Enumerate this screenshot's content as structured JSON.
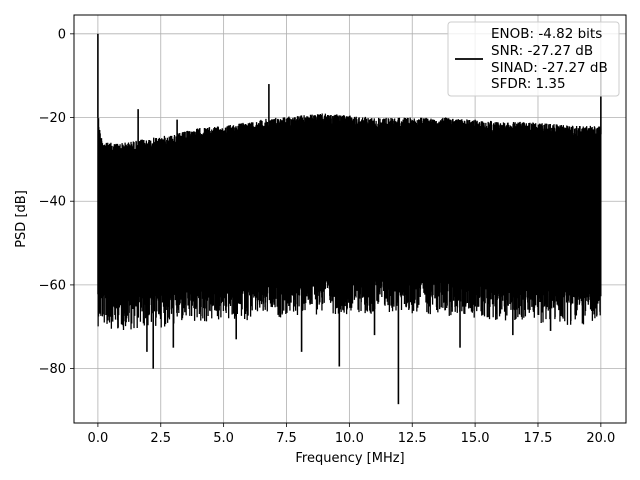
{
  "chart_data": {
    "type": "line",
    "title": "",
    "xlabel": "Frequency [MHz]",
    "ylabel": "PSD [dB]",
    "xlim": [
      -0.95,
      21.0
    ],
    "ylim": [
      -93.0,
      4.5
    ],
    "grid": true,
    "legend_position": "top-right",
    "x_ticks": [
      {
        "value": 0.0,
        "label": "0.0"
      },
      {
        "value": 2.5,
        "label": "2.5"
      },
      {
        "value": 5.0,
        "label": "5.0"
      },
      {
        "value": 7.5,
        "label": "7.5"
      },
      {
        "value": 10.0,
        "label": "10.0"
      },
      {
        "value": 12.5,
        "label": "12.5"
      },
      {
        "value": 15.0,
        "label": "15.0"
      },
      {
        "value": 17.5,
        "label": "17.5"
      },
      {
        "value": 20.0,
        "label": "20.0"
      }
    ],
    "y_ticks": [
      {
        "value": 0,
        "label": "0"
      },
      {
        "value": -20,
        "label": "−20"
      },
      {
        "value": -40,
        "label": "−40"
      },
      {
        "value": -60,
        "label": "−60"
      },
      {
        "value": -80,
        "label": "−80"
      }
    ],
    "series": [
      {
        "color": "#000000",
        "x_range": [
          0.0,
          20.0
        ],
        "upper_envelope": [
          [
            0.0,
            -18
          ],
          [
            0.1,
            -24
          ],
          [
            0.3,
            -26
          ],
          [
            1.0,
            -26
          ],
          [
            2.0,
            -25
          ],
          [
            3.0,
            -24
          ],
          [
            4.0,
            -22.5
          ],
          [
            5.0,
            -22
          ],
          [
            6.0,
            -21
          ],
          [
            7.0,
            -20
          ],
          [
            8.0,
            -19.5
          ],
          [
            9.0,
            -19
          ],
          [
            10.0,
            -19.5
          ],
          [
            11.0,
            -20
          ],
          [
            12.0,
            -20
          ],
          [
            13.0,
            -20
          ],
          [
            14.0,
            -20
          ],
          [
            15.0,
            -20.5
          ],
          [
            16.0,
            -21
          ],
          [
            17.0,
            -21
          ],
          [
            18.0,
            -21.5
          ],
          [
            19.0,
            -22
          ],
          [
            20.0,
            -22
          ]
        ],
        "dense_floor": [
          [
            0.0,
            -62
          ],
          [
            1.0,
            -63
          ],
          [
            3.0,
            -62
          ],
          [
            5.0,
            -61
          ],
          [
            7.0,
            -60
          ],
          [
            9.0,
            -59
          ],
          [
            11.0,
            -59
          ],
          [
            13.0,
            -59
          ],
          [
            15.0,
            -60
          ],
          [
            17.0,
            -61
          ],
          [
            20.0,
            -62
          ]
        ],
        "peaks": [
          {
            "x": 0.0,
            "y": 0.0
          },
          {
            "x": 1.6,
            "y": -18.0
          },
          {
            "x": 3.15,
            "y": -20.5
          },
          {
            "x": 6.8,
            "y": -12.0
          },
          {
            "x": 20.0,
            "y": -7.0
          }
        ],
        "dips": [
          {
            "x": 0.4,
            "y": -68.5
          },
          {
            "x": 1.95,
            "y": -76.0
          },
          {
            "x": 2.2,
            "y": -80.0
          },
          {
            "x": 3.0,
            "y": -75.0
          },
          {
            "x": 5.5,
            "y": -73.0
          },
          {
            "x": 8.1,
            "y": -76.0
          },
          {
            "x": 9.6,
            "y": -79.5
          },
          {
            "x": 11.0,
            "y": -72.0
          },
          {
            "x": 11.95,
            "y": -88.5
          },
          {
            "x": 14.4,
            "y": -75.0
          },
          {
            "x": 16.5,
            "y": -72.0
          },
          {
            "x": 18.0,
            "y": -71.0
          }
        ]
      }
    ],
    "legend": {
      "entries": [
        "ENOB: -4.82 bits",
        "SNR: -27.27 dB",
        "SINAD: -27.27 dB",
        "SFDR: 1.35"
      ]
    }
  }
}
